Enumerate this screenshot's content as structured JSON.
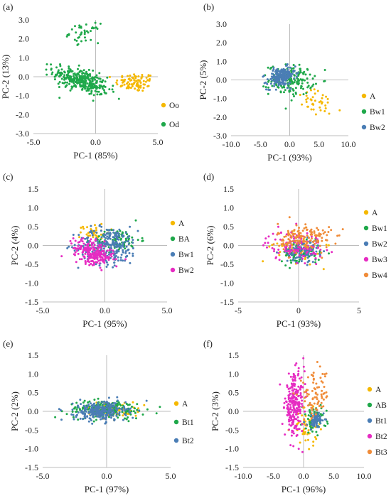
{
  "chart_data": [
    {
      "type": "scatter",
      "label": "(a)",
      "xlabel": "PC-1 (85%)",
      "ylabel": "PC-2 (13%)",
      "xlim": [
        -5,
        5
      ],
      "ylim": [
        -3,
        3
      ],
      "xticks": [
        "-5.0",
        "0.0",
        "5.0"
      ],
      "yticks": [
        "-3.0",
        "-2.0",
        "-1.0",
        "0.0",
        "1.0",
        "2.0",
        "3.0"
      ],
      "legend_position": "right",
      "series": [
        {
          "name": "Oo",
          "color": "#F5B800",
          "clusters": [
            {
              "cx": 3.2,
              "cy": -0.3,
              "sx": 0.8,
              "sy": 0.25,
              "n": 90
            }
          ]
        },
        {
          "name": "Od",
          "color": "#1FA84A",
          "clusters": [
            {
              "cx": -1.2,
              "cy": -0.2,
              "sx": 1.1,
              "sy": 0.3,
              "n": 330,
              "tilt": -0.17
            },
            {
              "cx": -0.9,
              "cy": 2.3,
              "sx": 0.6,
              "sy": 0.25,
              "n": 40
            }
          ]
        }
      ]
    },
    {
      "type": "scatter",
      "label": "(b)",
      "xlabel": "PC-1 (93%)",
      "ylabel": "PC-2 (5%)",
      "xlim": [
        -10,
        10
      ],
      "ylim": [
        -3,
        3
      ],
      "xticks": [
        "-10.0",
        "-5.0",
        "0.0",
        "5.0",
        "10.0"
      ],
      "yticks": [
        "-3.0",
        "-2.0",
        "-1.0",
        "0.0",
        "1.0",
        "2.0",
        "3.0"
      ],
      "legend_position": "right",
      "series": [
        {
          "name": "A",
          "color": "#F5B800",
          "clusters": [
            {
              "cx": 5.0,
              "cy": -1.3,
              "sx": 2.0,
              "sy": 0.35,
              "n": 40,
              "tilt": -0.12
            }
          ]
        },
        {
          "name": "Bw1",
          "color": "#1FA84A",
          "clusters": [
            {
              "cx": 0.3,
              "cy": 0.0,
              "sx": 1.9,
              "sy": 0.4,
              "n": 160
            }
          ]
        },
        {
          "name": "Bw2",
          "color": "#4A7DB5",
          "clusters": [
            {
              "cx": -1.5,
              "cy": 0.15,
              "sx": 1.2,
              "sy": 0.25,
              "n": 190,
              "tilt": 0.12
            }
          ]
        }
      ]
    },
    {
      "type": "scatter",
      "label": "(c)",
      "xlabel": "PC-1 (95%)",
      "ylabel": "PC-2 (4%)",
      "xlim": [
        -5,
        5
      ],
      "ylim": [
        -1.5,
        1.5
      ],
      "xticks": [
        "-5.0",
        "0.0",
        "5.0"
      ],
      "yticks": [
        "-1.5",
        "-1.0",
        "-0.5",
        "0.0",
        "0.5",
        "1.0",
        "1.5"
      ],
      "legend_position": "right",
      "series": [
        {
          "name": "A",
          "color": "#F5B800",
          "clusters": [
            {
              "cx": -0.8,
              "cy": 0.35,
              "sx": 0.6,
              "sy": 0.12,
              "n": 40
            }
          ]
        },
        {
          "name": "BA",
          "color": "#1FA84A",
          "clusters": [
            {
              "cx": 1.0,
              "cy": 0.15,
              "sx": 0.9,
              "sy": 0.15,
              "n": 90
            }
          ]
        },
        {
          "name": "Bw1",
          "color": "#4A7DB5",
          "clusters": [
            {
              "cx": 0.3,
              "cy": 0.0,
              "sx": 1.2,
              "sy": 0.25,
              "n": 250
            }
          ]
        },
        {
          "name": "Bw2",
          "color": "#E62CC2",
          "clusters": [
            {
              "cx": -0.9,
              "cy": -0.2,
              "sx": 0.8,
              "sy": 0.15,
              "n": 230,
              "tilt": -0.15
            }
          ]
        }
      ]
    },
    {
      "type": "scatter",
      "label": "(d)",
      "xlabel": "PC-1 (93%)",
      "ylabel": "PC-2 (6%)",
      "xlim": [
        -5,
        5
      ],
      "ylim": [
        -1.5,
        1.5
      ],
      "xticks": [
        "-5",
        "0",
        "5"
      ],
      "yticks": [
        "-1.5",
        "-1.0",
        "-0.5",
        "0.0",
        "0.5",
        "1.0",
        "1.5"
      ],
      "legend_position": "right",
      "series": [
        {
          "name": "A",
          "color": "#F5B800",
          "clusters": [
            {
              "cx": 0.0,
              "cy": -0.05,
              "sx": 1.0,
              "sy": 0.2,
              "n": 60
            }
          ]
        },
        {
          "name": "Bw1",
          "color": "#1FA84A",
          "clusters": [
            {
              "cx": 0.2,
              "cy": -0.2,
              "sx": 0.8,
              "sy": 0.15,
              "n": 90
            }
          ]
        },
        {
          "name": "Bw2",
          "color": "#4A7DB5",
          "clusters": [
            {
              "cx": 0.3,
              "cy": -0.15,
              "sx": 0.7,
              "sy": 0.15,
              "n": 110
            }
          ]
        },
        {
          "name": "Bw3",
          "color": "#E62CC2",
          "clusters": [
            {
              "cx": -0.3,
              "cy": 0.0,
              "sx": 1.2,
              "sy": 0.2,
              "n": 110
            }
          ]
        },
        {
          "name": "Bw4",
          "color": "#F08C3A",
          "clusters": [
            {
              "cx": 0.5,
              "cy": 0.2,
              "sx": 1.1,
              "sy": 0.2,
              "n": 150
            }
          ]
        }
      ]
    },
    {
      "type": "scatter",
      "label": "(e)",
      "xlabel": "PC-1 (97%)",
      "ylabel": "PC-2 (2%)",
      "xlim": [
        -5,
        5
      ],
      "ylim": [
        -1.5,
        1.5
      ],
      "xticks": [
        "-5.0",
        "0.0",
        "5.0"
      ],
      "yticks": [
        "-1.5",
        "-1.0",
        "-0.5",
        "0.0",
        "0.5",
        "1.0",
        "1.5"
      ],
      "legend_position": "right",
      "series": [
        {
          "name": "A",
          "color": "#F5B800",
          "clusters": [
            {
              "cx": 0.5,
              "cy": 0.05,
              "sx": 1.0,
              "sy": 0.1,
              "n": 80
            }
          ]
        },
        {
          "name": "Bt1",
          "color": "#1FA84A",
          "clusters": [
            {
              "cx": 0.0,
              "cy": 0.05,
              "sx": 1.5,
              "sy": 0.12,
              "n": 190
            }
          ]
        },
        {
          "name": "Bt2",
          "color": "#4A7DB5",
          "clusters": [
            {
              "cx": -0.5,
              "cy": 0.0,
              "sx": 1.0,
              "sy": 0.13,
              "n": 260
            }
          ]
        }
      ]
    },
    {
      "type": "scatter",
      "label": "(f)",
      "xlabel": "PC-1 (96%)",
      "ylabel": "PC-2 (3%)",
      "xlim": [
        -10,
        10
      ],
      "ylim": [
        -1.5,
        1.5
      ],
      "xticks": [
        "-10.0",
        "-5.0",
        "0.0",
        "5.0",
        "10.0"
      ],
      "yticks": [
        "-1.5",
        "-1.0",
        "-0.5",
        "0.0",
        "0.5",
        "1.0",
        "1.5"
      ],
      "legend_position": "right",
      "series": [
        {
          "name": "A",
          "color": "#F5B800",
          "clusters": [
            {
              "cx": 0.8,
              "cy": -0.4,
              "sx": 1.3,
              "sy": 0.25,
              "n": 50
            }
          ]
        },
        {
          "name": "AB",
          "color": "#1FA84A",
          "clusters": [
            {
              "cx": 1.8,
              "cy": -0.2,
              "sx": 1.0,
              "sy": 0.18,
              "n": 60
            }
          ]
        },
        {
          "name": "Bt1",
          "color": "#4A7DB5",
          "clusters": [
            {
              "cx": 2.0,
              "cy": -0.25,
              "sx": 0.7,
              "sy": 0.1,
              "n": 80,
              "tilt": 0.2
            }
          ]
        },
        {
          "name": "Bt2",
          "color": "#E62CC2",
          "clusters": [
            {
              "cx": -1.5,
              "cy": 0.2,
              "sx": 0.8,
              "sy": 0.4,
              "n": 230,
              "tilt": 0.2
            }
          ]
        },
        {
          "name": "Bt3",
          "color": "#F08C3A",
          "clusters": [
            {
              "cx": 1.8,
              "cy": 0.4,
              "sx": 1.3,
              "sy": 0.3,
              "n": 80,
              "tilt": 0.2
            }
          ]
        }
      ]
    }
  ]
}
